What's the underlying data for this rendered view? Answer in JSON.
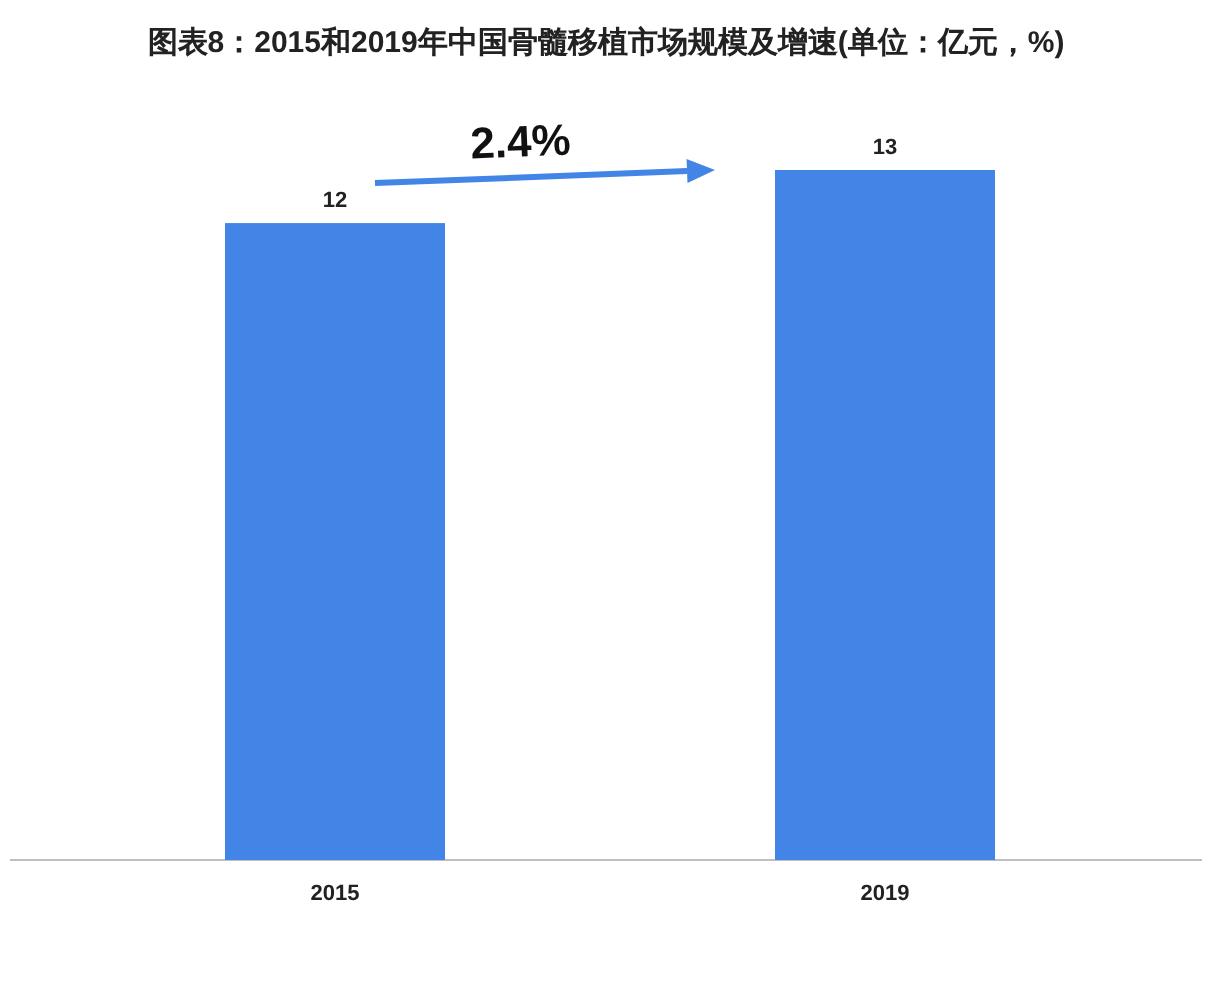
{
  "chart_data": {
    "type": "bar",
    "title": "图表8：2015和2019年中国骨髓移植市场规模及增速(单位：亿元，%)",
    "categories": [
      "2015",
      "2019"
    ],
    "values": [
      12,
      13
    ],
    "color": "#4285e6",
    "data_labels": true,
    "annotations": [
      "2.4%"
    ]
  }
}
